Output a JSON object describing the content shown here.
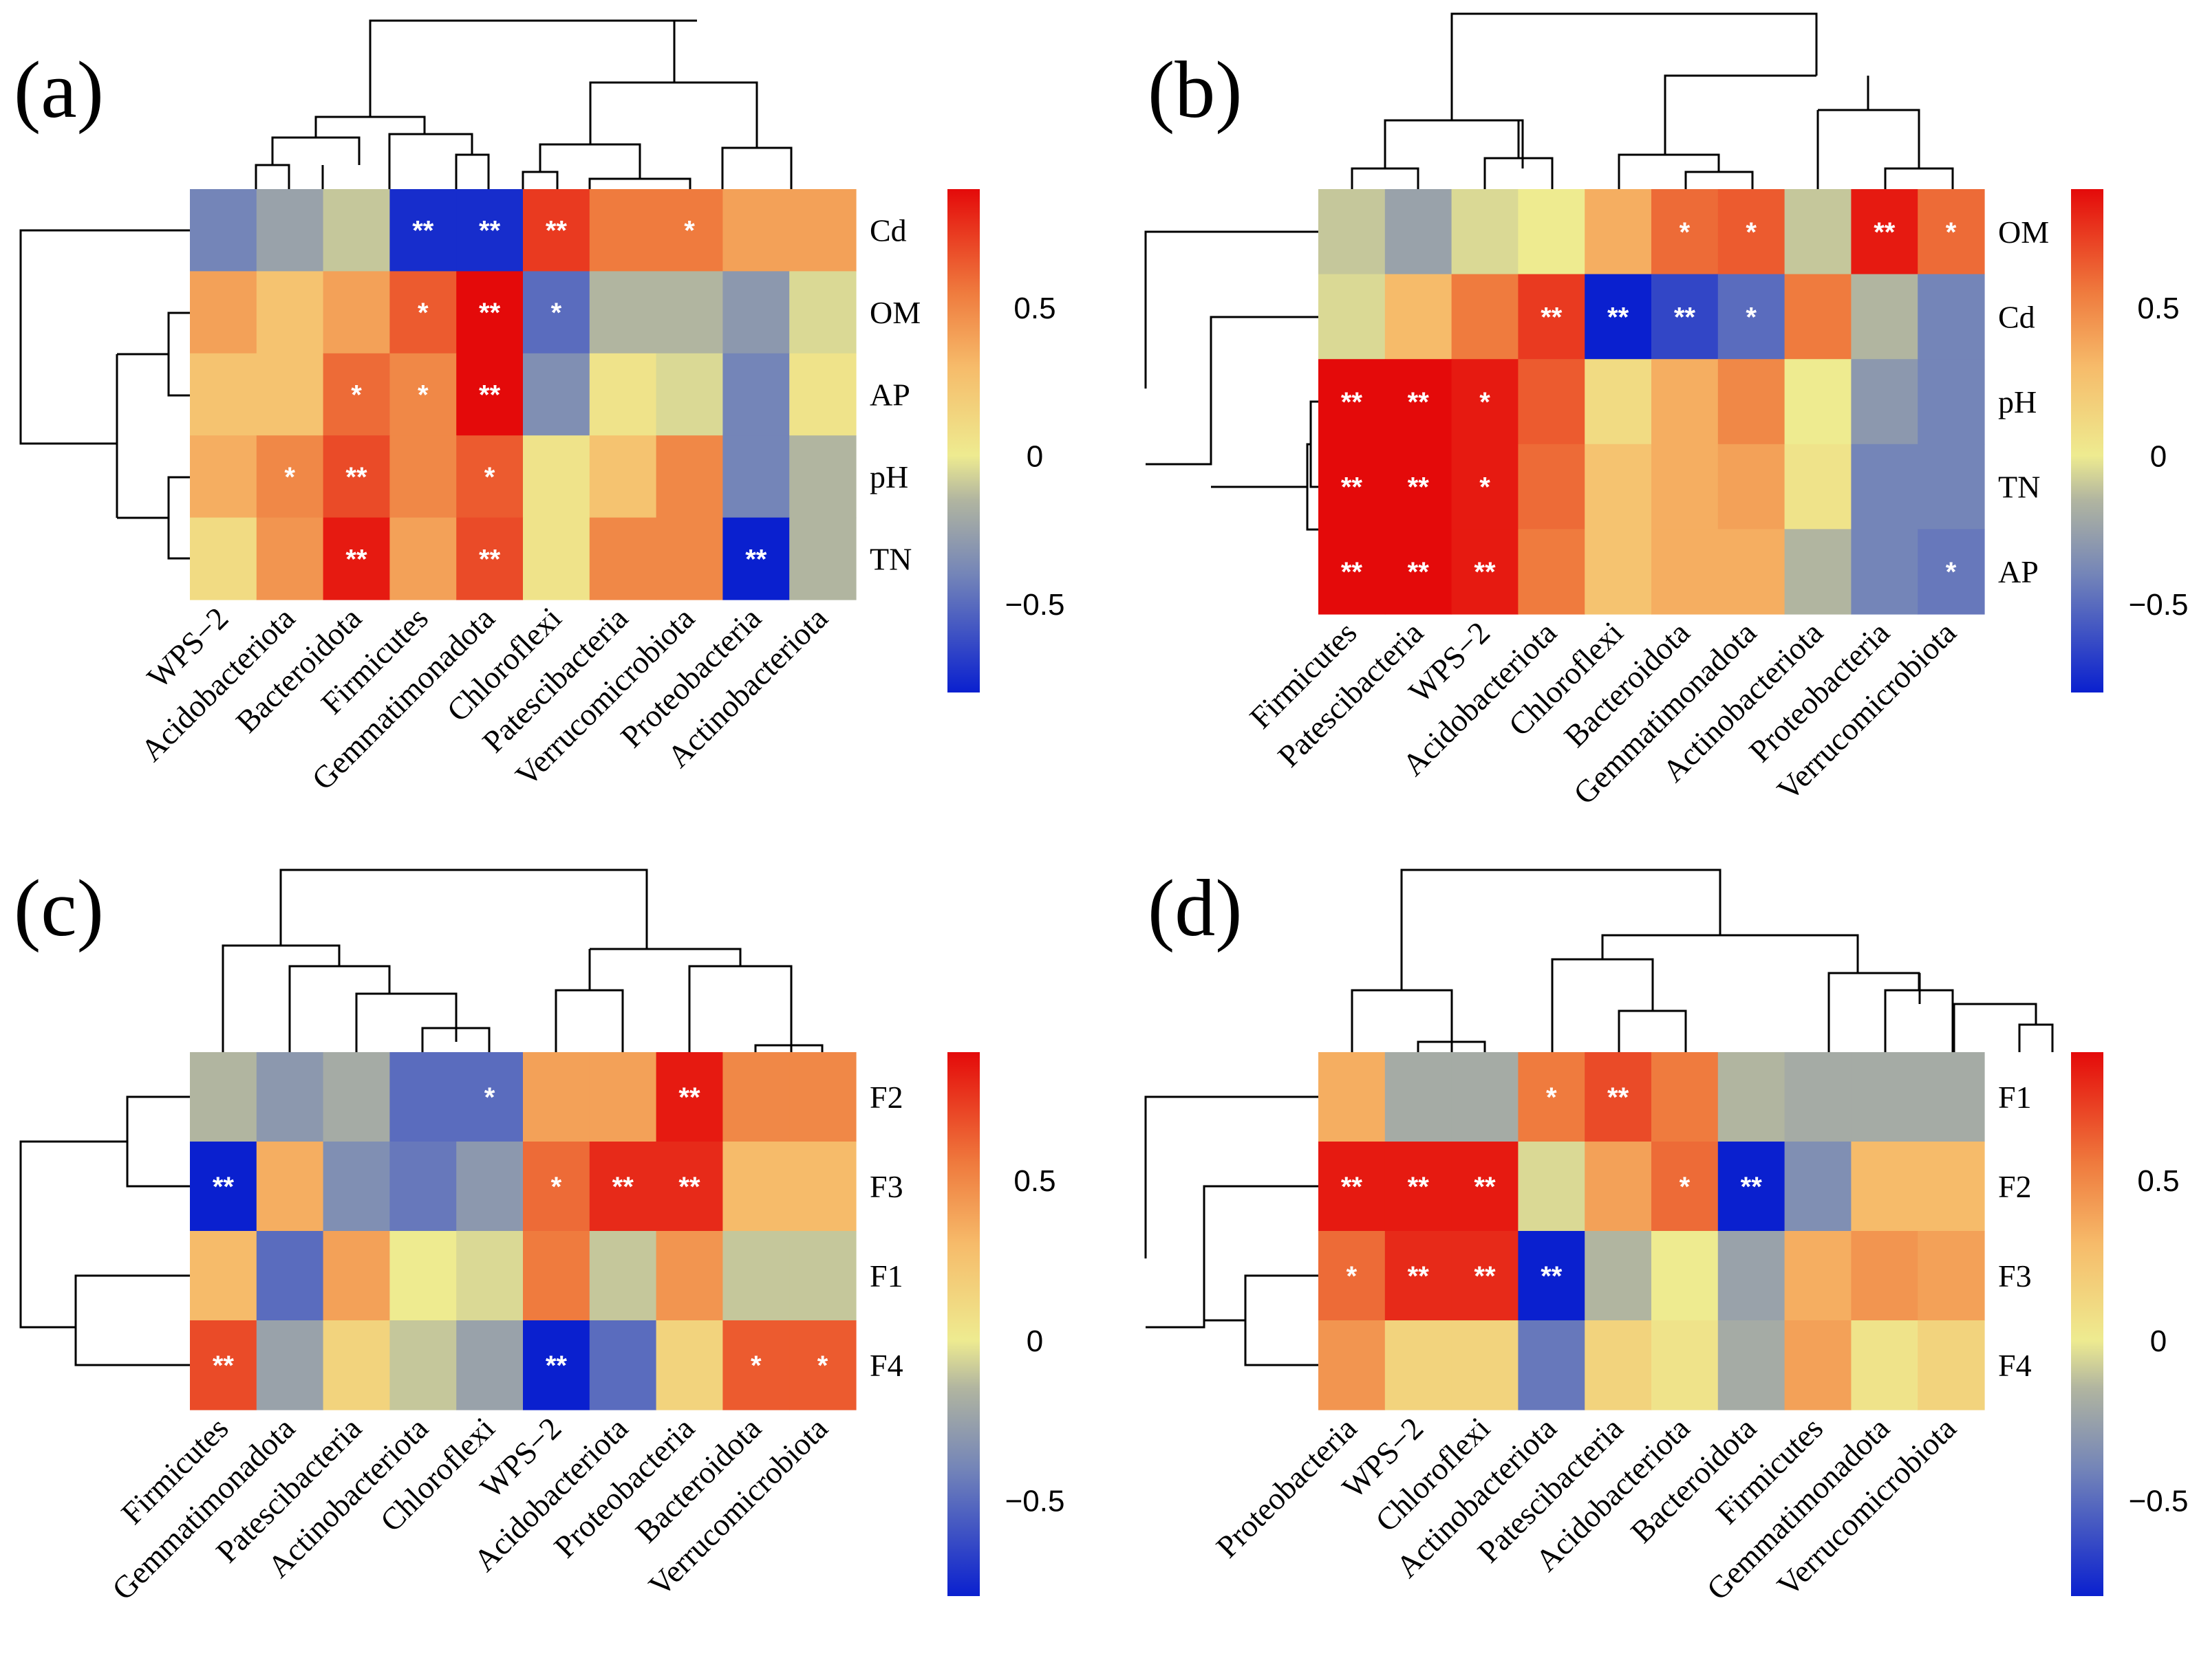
{
  "colormap": {
    "stops": [
      {
        "v": -0.8,
        "color": "#0a20cf"
      },
      {
        "v": -0.4,
        "color": "#7485b8"
      },
      {
        "v": -0.15,
        "color": "#b1b5a0"
      },
      {
        "v": 0.0,
        "color": "#eeeb90"
      },
      {
        "v": 0.3,
        "color": "#f6bb6a"
      },
      {
        "v": 0.55,
        "color": "#ef7b3e"
      },
      {
        "v": 0.9,
        "color": "#e40a0a"
      }
    ]
  },
  "chart_data": [
    {
      "type": "heatmap",
      "panel": "(a)",
      "rows": [
        "Cd",
        "OM",
        "AP",
        "pH",
        "TN"
      ],
      "columns": [
        "WPS−2",
        "Acidobacteriota",
        "Bacteroidota",
        "Firmicutes",
        "Gemmatimonadota",
        "Chloroflexi",
        "Patescibacteria",
        "Verrucomicrobiota",
        "Proteobacteria",
        "Actinobacteriota"
      ],
      "values": [
        [
          -0.4,
          -0.25,
          -0.1,
          -0.75,
          -0.75,
          0.75,
          0.55,
          0.55,
          0.4,
          0.4
        ],
        [
          0.4,
          0.25,
          0.4,
          0.65,
          0.9,
          -0.5,
          -0.15,
          -0.15,
          -0.3,
          -0.05
        ],
        [
          0.25,
          0.25,
          0.6,
          0.5,
          0.95,
          -0.35,
          0.05,
          -0.05,
          -0.4,
          0.05
        ],
        [
          0.35,
          0.5,
          0.7,
          0.5,
          0.65,
          0.05,
          0.25,
          0.5,
          -0.4,
          -0.15
        ],
        [
          0.1,
          0.45,
          0.85,
          0.4,
          0.7,
          0.05,
          0.5,
          0.5,
          -0.85,
          -0.15
        ]
      ],
      "significance": [
        [
          "",
          "",
          "",
          "**",
          "**",
          "**",
          "",
          "*",
          "",
          ""
        ],
        [
          "",
          "",
          "",
          "*",
          "**",
          "*",
          "",
          "",
          "",
          ""
        ],
        [
          "",
          "",
          "*",
          "*",
          "**",
          "",
          "",
          "",
          "",
          ""
        ],
        [
          "",
          "*",
          "**",
          "",
          "*",
          "",
          "",
          "",
          "",
          ""
        ],
        [
          "",
          "",
          "**",
          "",
          "**",
          "",
          "",
          "",
          "**",
          ""
        ]
      ],
      "colorbar_ticks": [
        "0.5",
        "0",
        "−0.5"
      ],
      "colorbar_tick_values": [
        0.5,
        0,
        -0.5
      ],
      "colorbar_range": [
        -0.8,
        0.9
      ]
    },
    {
      "type": "heatmap",
      "panel": "(b)",
      "rows": [
        "OM",
        "Cd",
        "pH",
        "TN",
        "AP"
      ],
      "columns": [
        "Firmicutes",
        "Patescibacteria",
        "WPS−2",
        "Acidobacteriota",
        "Chloroflexi",
        "Bacteroidota",
        "Gemmatimonadota",
        "Actinobacteriota",
        "Proteobacteria",
        "Verrucomicrobiota"
      ],
      "values": [
        [
          -0.1,
          -0.25,
          -0.05,
          0.0,
          0.35,
          0.6,
          0.65,
          -0.1,
          0.85,
          0.6
        ],
        [
          -0.05,
          0.3,
          0.55,
          0.75,
          -0.85,
          -0.65,
          -0.5,
          0.55,
          -0.15,
          -0.4
        ],
        [
          0.9,
          0.9,
          0.85,
          0.65,
          0.1,
          0.35,
          0.5,
          0.0,
          -0.3,
          -0.4
        ],
        [
          0.9,
          0.9,
          0.85,
          0.6,
          0.25,
          0.35,
          0.4,
          0.05,
          -0.4,
          -0.4
        ],
        [
          0.9,
          0.9,
          0.85,
          0.55,
          0.25,
          0.35,
          0.35,
          -0.15,
          -0.4,
          -0.45
        ]
      ],
      "significance": [
        [
          "",
          "",
          "",
          "",
          "",
          "*",
          "*",
          "",
          "**",
          "*"
        ],
        [
          "",
          "",
          "",
          "**",
          "**",
          "**",
          "*",
          "",
          "",
          ""
        ],
        [
          "**",
          "**",
          "*",
          "",
          "",
          "",
          "",
          "",
          "",
          ""
        ],
        [
          "**",
          "**",
          "*",
          "",
          "",
          "",
          "",
          "",
          "",
          ""
        ],
        [
          "**",
          "**",
          "**",
          "",
          "",
          "",
          "",
          "",
          "",
          "*"
        ]
      ],
      "colorbar_ticks": [
        "0.5",
        "0",
        "−0.5"
      ],
      "colorbar_tick_values": [
        0.5,
        0,
        -0.5
      ],
      "colorbar_range": [
        -0.8,
        0.9
      ]
    },
    {
      "type": "heatmap",
      "panel": "(c)",
      "rows": [
        "F2",
        "F3",
        "F1",
        "F4"
      ],
      "columns": [
        "Firmicutes",
        "Gemmatimonadota",
        "Patescibacteria",
        "Actinobacteriota",
        "Chloroflexi",
        "WPS−2",
        "Acidobacteriota",
        "Proteobacteria",
        "Bacteroidota",
        "Verrucomicrobiota"
      ],
      "values": [
        [
          -0.15,
          -0.3,
          -0.2,
          -0.5,
          -0.5,
          0.4,
          0.4,
          0.85,
          0.5,
          0.5
        ],
        [
          -0.8,
          0.35,
          -0.35,
          -0.45,
          -0.3,
          0.6,
          0.8,
          0.8,
          0.3,
          0.3
        ],
        [
          0.3,
          -0.5,
          0.4,
          0.0,
          -0.05,
          0.55,
          -0.1,
          0.45,
          -0.1,
          -0.1
        ],
        [
          0.7,
          -0.25,
          0.15,
          -0.1,
          -0.25,
          -0.8,
          -0.5,
          0.15,
          0.65,
          0.65
        ]
      ],
      "significance": [
        [
          "",
          "",
          "",
          "",
          "*",
          "",
          "",
          "**",
          "",
          ""
        ],
        [
          "**",
          "",
          "",
          "",
          "",
          "*",
          "**",
          "**",
          "",
          ""
        ],
        [
          "",
          "",
          "",
          "",
          "",
          "",
          "",
          "",
          "",
          ""
        ],
        [
          "**",
          "",
          "",
          "",
          "",
          "**",
          "",
          "",
          "*",
          "*"
        ]
      ],
      "colorbar_ticks": [
        "0.5",
        "0",
        "−0.5"
      ],
      "colorbar_tick_values": [
        0.5,
        0,
        -0.5
      ],
      "colorbar_range": [
        -0.8,
        0.9
      ]
    },
    {
      "type": "heatmap",
      "panel": "(d)",
      "rows": [
        "F1",
        "F2",
        "F3",
        "F4"
      ],
      "columns": [
        "Proteobacteria",
        "WPS−2",
        "Chloroflexi",
        "Actinobacteriota",
        "Patescibacteria",
        "Acidobacteriota",
        "Bacteroidota",
        "Firmicutes",
        "Gemmatimonadota",
        "Verrucomicrobiota"
      ],
      "values": [
        [
          0.35,
          -0.2,
          -0.2,
          0.55,
          0.7,
          0.55,
          -0.15,
          -0.2,
          -0.2,
          -0.2
        ],
        [
          0.85,
          0.85,
          0.85,
          -0.05,
          0.4,
          0.6,
          -0.8,
          -0.35,
          0.3,
          0.3
        ],
        [
          0.6,
          0.8,
          0.8,
          -0.85,
          -0.15,
          0.0,
          -0.25,
          0.35,
          0.45,
          0.4
        ],
        [
          0.45,
          0.15,
          0.15,
          -0.45,
          0.15,
          0.05,
          -0.2,
          0.4,
          0.05,
          0.15
        ]
      ],
      "significance": [
        [
          "",
          "",
          "",
          "*",
          "**",
          "",
          "",
          "",
          "",
          ""
        ],
        [
          "**",
          "**",
          "**",
          "",
          "",
          "*",
          "**",
          "",
          "",
          ""
        ],
        [
          "*",
          "**",
          "**",
          "**",
          "",
          "",
          "",
          "",
          "",
          ""
        ],
        [
          "",
          "",
          "",
          "",
          "",
          "",
          "",
          "",
          "",
          ""
        ]
      ],
      "colorbar_ticks": [
        "0.5",
        "0",
        "−0.5"
      ],
      "colorbar_tick_values": [
        0.5,
        0,
        -0.5
      ],
      "colorbar_range": [
        -0.8,
        0.9
      ]
    }
  ]
}
